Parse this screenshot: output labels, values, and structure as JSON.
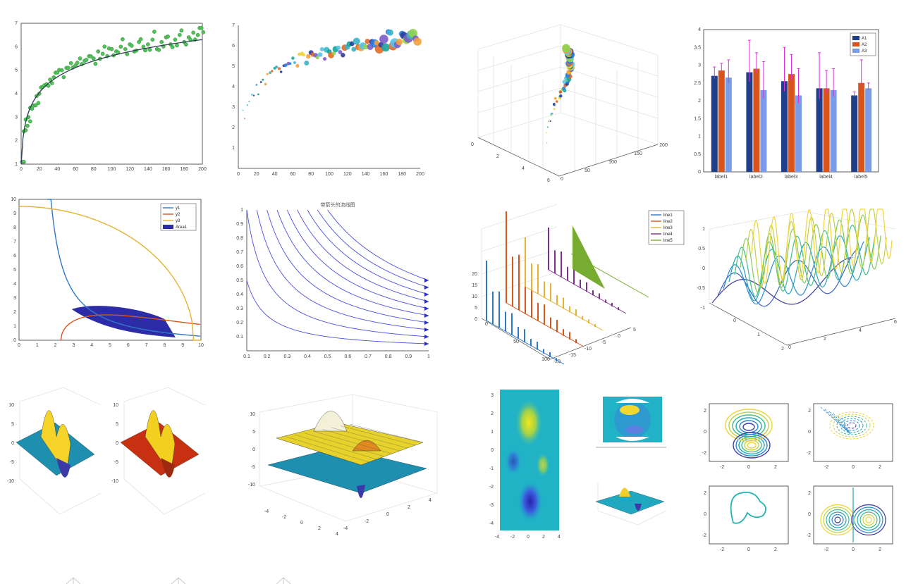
{
  "chart_data": [
    {
      "id": "p1",
      "type": "scatter",
      "title": "",
      "xlabel": "",
      "ylabel": "",
      "xlim": [
        0,
        200
      ],
      "ylim": [
        1,
        7
      ],
      "x_ticks": [
        0,
        20,
        40,
        60,
        80,
        100,
        120,
        140,
        160,
        180,
        200
      ],
      "y_ticks": [
        1,
        2,
        3,
        4,
        5,
        6,
        7
      ],
      "fit": "y = 1 + 1.0*ln(1+x)",
      "series": [
        {
          "x": [
            1,
            3,
            5,
            8,
            10,
            14,
            17,
            20,
            24,
            28,
            32,
            36,
            40,
            45,
            50,
            55,
            60,
            65,
            70,
            75,
            80,
            85,
            90,
            95,
            100,
            105,
            110,
            115,
            120,
            125,
            130,
            135,
            140,
            145,
            150,
            155,
            160,
            165,
            170,
            175,
            180,
            185,
            190,
            195,
            199
          ],
          "y": [
            1.1,
            2.4,
            2.9,
            3.0,
            3.4,
            3.5,
            3.9,
            4.0,
            4.3,
            4.4,
            4.6,
            4.7,
            4.9,
            5.0,
            5.1,
            5.3,
            5.2,
            5.5,
            5.4,
            5.6,
            5.5,
            5.8,
            5.7,
            5.6,
            5.9,
            5.8,
            6.0,
            5.9,
            6.1,
            5.8,
            6.2,
            6.0,
            6.1,
            6.3,
            5.9,
            6.2,
            6.4,
            6.1,
            6.3,
            6.5,
            6.2,
            6.4,
            6.6,
            6.5,
            6.8
          ]
        }
      ]
    },
    {
      "id": "p2",
      "type": "scatter",
      "title": "",
      "xlim": [
        0,
        200
      ],
      "ylim": [
        0,
        7
      ],
      "x_ticks": [
        0,
        20,
        40,
        60,
        80,
        100,
        120,
        140,
        160,
        180,
        200
      ],
      "y_ticks": [
        1,
        2,
        3,
        4,
        5,
        6,
        7
      ],
      "series": [
        {
          "x": [
            5,
            10,
            15,
            20,
            25,
            30,
            35,
            40,
            45,
            50,
            55,
            60,
            65,
            70,
            75,
            80,
            85,
            90,
            95,
            100,
            105,
            110,
            115,
            120,
            125,
            130,
            135,
            140,
            145,
            150,
            155,
            160,
            165,
            170,
            175,
            180,
            185,
            190,
            195
          ],
          "y": [
            2.6,
            3.2,
            3.6,
            3.9,
            4.2,
            4.4,
            4.6,
            4.8,
            4.9,
            5.1,
            5.0,
            5.2,
            5.3,
            5.5,
            5.4,
            5.6,
            5.5,
            5.7,
            5.6,
            5.8,
            5.7,
            5.9,
            5.8,
            6.0,
            5.9,
            6.1,
            6.0,
            6.2,
            6.1,
            6.3,
            6.0,
            6.2,
            6.4,
            6.1,
            6.3,
            6.5,
            6.4,
            6.6,
            6.5
          ]
        }
      ]
    },
    {
      "id": "p3",
      "type": "scatter3d",
      "x_ticks": [
        0,
        50,
        100,
        150,
        200
      ],
      "y_ticks": [
        0,
        2,
        4,
        6
      ]
    },
    {
      "id": "p4",
      "type": "bar",
      "categories": [
        "label1",
        "label2",
        "label3",
        "label4",
        "label5"
      ],
      "ylim": [
        0,
        4
      ],
      "y_ticks": [
        0,
        0.5,
        1,
        1.5,
        2,
        2.5,
        3,
        3.5,
        4
      ],
      "series": [
        {
          "name": "A1",
          "values": [
            2.7,
            2.8,
            2.55,
            2.35,
            2.15
          ],
          "err": [
            0.25,
            0.9,
            0.95,
            1.0,
            0.1
          ],
          "color": "#1f3f8a"
        },
        {
          "name": "A2",
          "values": [
            2.85,
            2.9,
            2.75,
            2.35,
            2.5
          ],
          "err": [
            0.2,
            0.45,
            0.55,
            0.5,
            0.65
          ],
          "color": "#d9541a"
        },
        {
          "name": "A3",
          "values": [
            2.65,
            2.3,
            2.15,
            2.3,
            2.35
          ],
          "err": [
            0.5,
            0.8,
            0.75,
            0.6,
            0.15
          ],
          "color": "#7a9be8"
        }
      ]
    },
    {
      "id": "p5",
      "type": "line",
      "xlim": [
        0,
        10
      ],
      "ylim": [
        0,
        10
      ],
      "x_ticks": [
        0,
        1,
        2,
        3,
        4,
        5,
        6,
        7,
        8,
        9,
        10
      ],
      "y_ticks": [
        0,
        1,
        2,
        3,
        4,
        5,
        6,
        7,
        8,
        9,
        10
      ],
      "series": [
        {
          "name": "y1",
          "color": "#2f78c8"
        },
        {
          "name": "y2",
          "color": "#d9541a"
        },
        {
          "name": "y3",
          "color": "#e5b234"
        },
        {
          "name": "Area1",
          "color": "#2c2ca8"
        }
      ]
    },
    {
      "id": "p6",
      "type": "line",
      "title": "带箭头的流线图",
      "xlim": [
        0.1,
        1
      ],
      "ylim": [
        0,
        1
      ],
      "x_ticks": [
        0.1,
        0.2,
        0.3,
        0.4,
        0.5,
        0.6,
        0.7,
        0.8,
        0.9,
        1
      ],
      "y_ticks": [
        0.1,
        0.2,
        0.3,
        0.4,
        0.5,
        0.6,
        0.7,
        0.8,
        0.9,
        1
      ],
      "curves_c": [
        0.05,
        0.1,
        0.15,
        0.2,
        0.25,
        0.3,
        0.35,
        0.4,
        0.45,
        0.5
      ]
    },
    {
      "id": "p7",
      "type": "stem3d",
      "x_ticks": [
        0,
        50,
        100
      ],
      "y_ticks": [
        -20,
        -15,
        -10,
        -5,
        0,
        5
      ],
      "z_ticks": [
        0,
        5,
        10,
        15,
        20
      ],
      "series": [
        {
          "name": "line1",
          "color": "#2f78c8"
        },
        {
          "name": "line2",
          "color": "#d9541a"
        },
        {
          "name": "line3",
          "color": "#e5b234"
        },
        {
          "name": "line4",
          "color": "#7e2f8e"
        },
        {
          "name": "line5",
          "color": "#77ac30"
        }
      ]
    },
    {
      "id": "p8",
      "type": "line3d",
      "z_ticks": [
        -1,
        -0.5,
        0,
        0.5,
        1
      ],
      "x_ticks": [
        0,
        2,
        4,
        6
      ],
      "y_ticks": [
        0,
        1,
        2
      ]
    },
    {
      "id": "p9",
      "type": "surface",
      "z_ticks": [
        -10,
        -5,
        0,
        5,
        10
      ]
    },
    {
      "id": "p10",
      "type": "surface",
      "z_ticks": [
        -10,
        -5,
        0,
        5,
        10
      ],
      "y_ticks": [
        -4,
        -2,
        0,
        2,
        4
      ],
      "x_ticks": [
        -4,
        -2,
        0,
        2,
        4
      ]
    },
    {
      "id": "p11",
      "type": "heatmap",
      "x_ticks": [
        -4,
        -2,
        0,
        2,
        4
      ],
      "y_ticks": [
        -4,
        -3,
        -2,
        -1,
        0,
        1,
        2,
        3
      ]
    },
    {
      "id": "p12",
      "type": "contour",
      "x_ticks": [
        -2,
        0,
        2
      ],
      "y_ticks": [
        -2,
        0,
        2
      ]
    }
  ]
}
